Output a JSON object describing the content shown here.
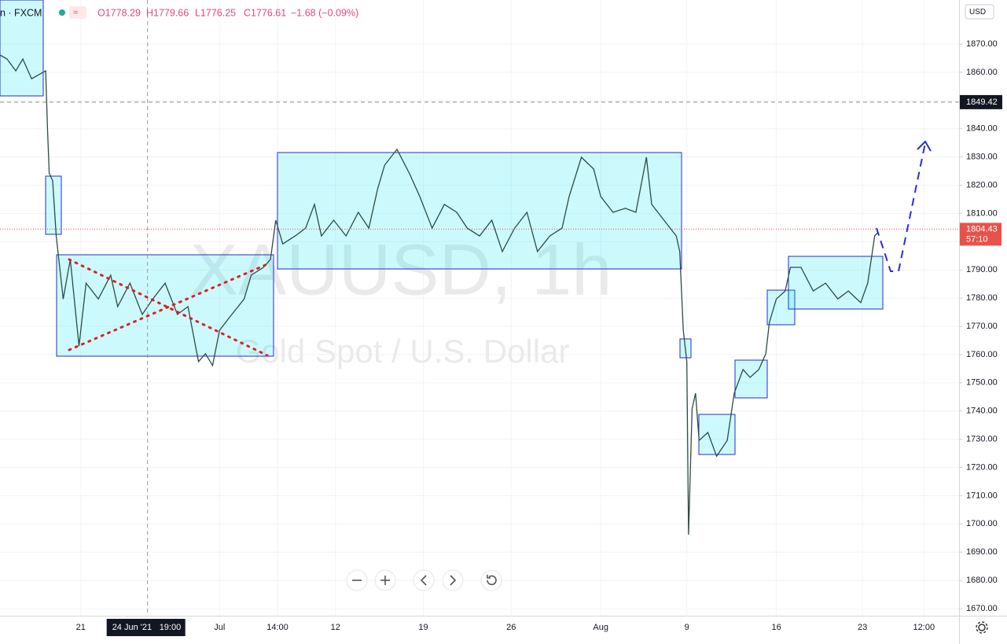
{
  "header": {
    "symbol": "n · FXCM",
    "open": "O1778.29",
    "high": "H1779.66",
    "low": "L1776.25",
    "close": "C1776.61",
    "change": "−1.68 (−0.09%)"
  },
  "watermark": {
    "symbol": "XAUUSD, 1h",
    "description": "Gold Spot / U.S. Dollar"
  },
  "chart_data": {
    "type": "line",
    "currency": "USD",
    "ylim": [
      1667.5,
      1885.6
    ],
    "yticks": [
      {
        "value": 1670,
        "label": "1670.00"
      },
      {
        "value": 1680,
        "label": "1680.00"
      },
      {
        "value": 1690,
        "label": "1690.00"
      },
      {
        "value": 1700,
        "label": "1700.00"
      },
      {
        "value": 1710,
        "label": "1710.00"
      },
      {
        "value": 1720,
        "label": "1720.00"
      },
      {
        "value": 1730,
        "label": "1730.00"
      },
      {
        "value": 1740,
        "label": "1740.00"
      },
      {
        "value": 1750,
        "label": "1750.00"
      },
      {
        "value": 1760,
        "label": "1760.00"
      },
      {
        "value": 1770,
        "label": "1770.00"
      },
      {
        "value": 1780,
        "label": "1780.00"
      },
      {
        "value": 1790,
        "label": "1790.00"
      },
      {
        "value": 1800,
        "label": "1800.00"
      },
      {
        "value": 1810,
        "label": "1810.00"
      },
      {
        "value": 1820,
        "label": "1820.00"
      },
      {
        "value": 1830,
        "label": "1830.00"
      },
      {
        "value": 1840,
        "label": "1840.00"
      },
      {
        "value": 1850,
        "label": "1850.00"
      },
      {
        "value": 1860,
        "label": "1860.00"
      },
      {
        "value": 1870,
        "label": "1870.00"
      }
    ],
    "xlim": [
      0,
      54.6
    ],
    "xticks": [
      {
        "value": 4.6,
        "label": "21"
      },
      {
        "value": 12.5,
        "label": "Jul"
      },
      {
        "value": 15.8,
        "label": "14:00"
      },
      {
        "value": 19.1,
        "label": "12"
      },
      {
        "value": 24.1,
        "label": "19"
      },
      {
        "value": 29.1,
        "label": "26"
      },
      {
        "value": 34.2,
        "label": "Aug"
      },
      {
        "value": 39.1,
        "label": "9"
      },
      {
        "value": 44.2,
        "label": "16"
      },
      {
        "value": 49.1,
        "label": "23"
      },
      {
        "value": 52.6,
        "label": "12:00"
      }
    ],
    "x": [
      0,
      0.4,
      0.9,
      1.3,
      1.8,
      2.2,
      2.6,
      2.7,
      2.8,
      3.0,
      3.2,
      3.6,
      4.0,
      4.5,
      4.9,
      5.6,
      6.3,
      6.7,
      7.4,
      8.1,
      8.7,
      9.4,
      10.1,
      10.7,
      11.3,
      11.7,
      12.1,
      12.5,
      13.2,
      13.9,
      14.3,
      15.0,
      15.4,
      15.7,
      16.1,
      16.8,
      17.4,
      17.9,
      18.3,
      19.0,
      19.7,
      20.4,
      21.0,
      21.5,
      21.9,
      22.6,
      23.3,
      23.9,
      24.6,
      25.3,
      26.0,
      26.6,
      27.3,
      28.0,
      28.6,
      29.3,
      30.0,
      30.6,
      31.3,
      32.0,
      32.4,
      33.1,
      33.8,
      34.2,
      34.9,
      35.6,
      36.2,
      36.8,
      37.1,
      37.8,
      38.5,
      38.7,
      38.9,
      39.1,
      39.2,
      39.4,
      39.6,
      39.8,
      40.3,
      40.8,
      41.4,
      41.8,
      42.3,
      42.7,
      43.2,
      43.6,
      43.8,
      44.2,
      44.7,
      45.0,
      45.6,
      46.3,
      47.0,
      47.7,
      48.3,
      49.0,
      49.4,
      49.8,
      50.0
    ],
    "series": [
      {
        "color": "#2f4a44",
        "values": [
          1866.1,
          1864.7,
          1860.5,
          1864.7,
          1857.7,
          1859.1,
          1860.5,
          1841.0,
          1824.3,
          1821.5,
          1802.0,
          1779.7,
          1793.7,
          1763.0,
          1785.3,
          1779.7,
          1788.1,
          1777.0,
          1785.3,
          1774.2,
          1779.7,
          1785.3,
          1774.2,
          1777.0,
          1757.5,
          1760.3,
          1756.1,
          1768.6,
          1774.2,
          1779.7,
          1788.1,
          1790.9,
          1793.7,
          1807.6,
          1799.2,
          1802.0,
          1804.8,
          1813.2,
          1802.0,
          1807.6,
          1802.0,
          1810.4,
          1804.8,
          1818.7,
          1827.1,
          1832.7,
          1824.3,
          1816.0,
          1804.8,
          1813.2,
          1810.4,
          1804.8,
          1802.0,
          1807.6,
          1796.5,
          1804.8,
          1810.4,
          1796.5,
          1802.0,
          1804.8,
          1816.0,
          1829.9,
          1825.7,
          1816.0,
          1810.4,
          1811.8,
          1810.4,
          1829.9,
          1813.2,
          1807.6,
          1802.0,
          1796.5,
          1768.6,
          1757.5,
          1696.2,
          1740.8,
          1746.3,
          1729.6,
          1732.4,
          1724.0,
          1729.6,
          1746.3,
          1754.7,
          1751.9,
          1754.7,
          1760.3,
          1771.4,
          1779.7,
          1782.5,
          1790.9,
          1790.9,
          1782.5,
          1785.3,
          1779.7,
          1782.5,
          1778.4,
          1785.3,
          1802.0,
          1803.4
        ]
      }
    ],
    "crosshair": {
      "x": 8.4,
      "date": "24 Jun '21",
      "time": "19:00",
      "price": 1849.42
    },
    "last_price": 1804.43,
    "countdown": "57:10"
  }
}
